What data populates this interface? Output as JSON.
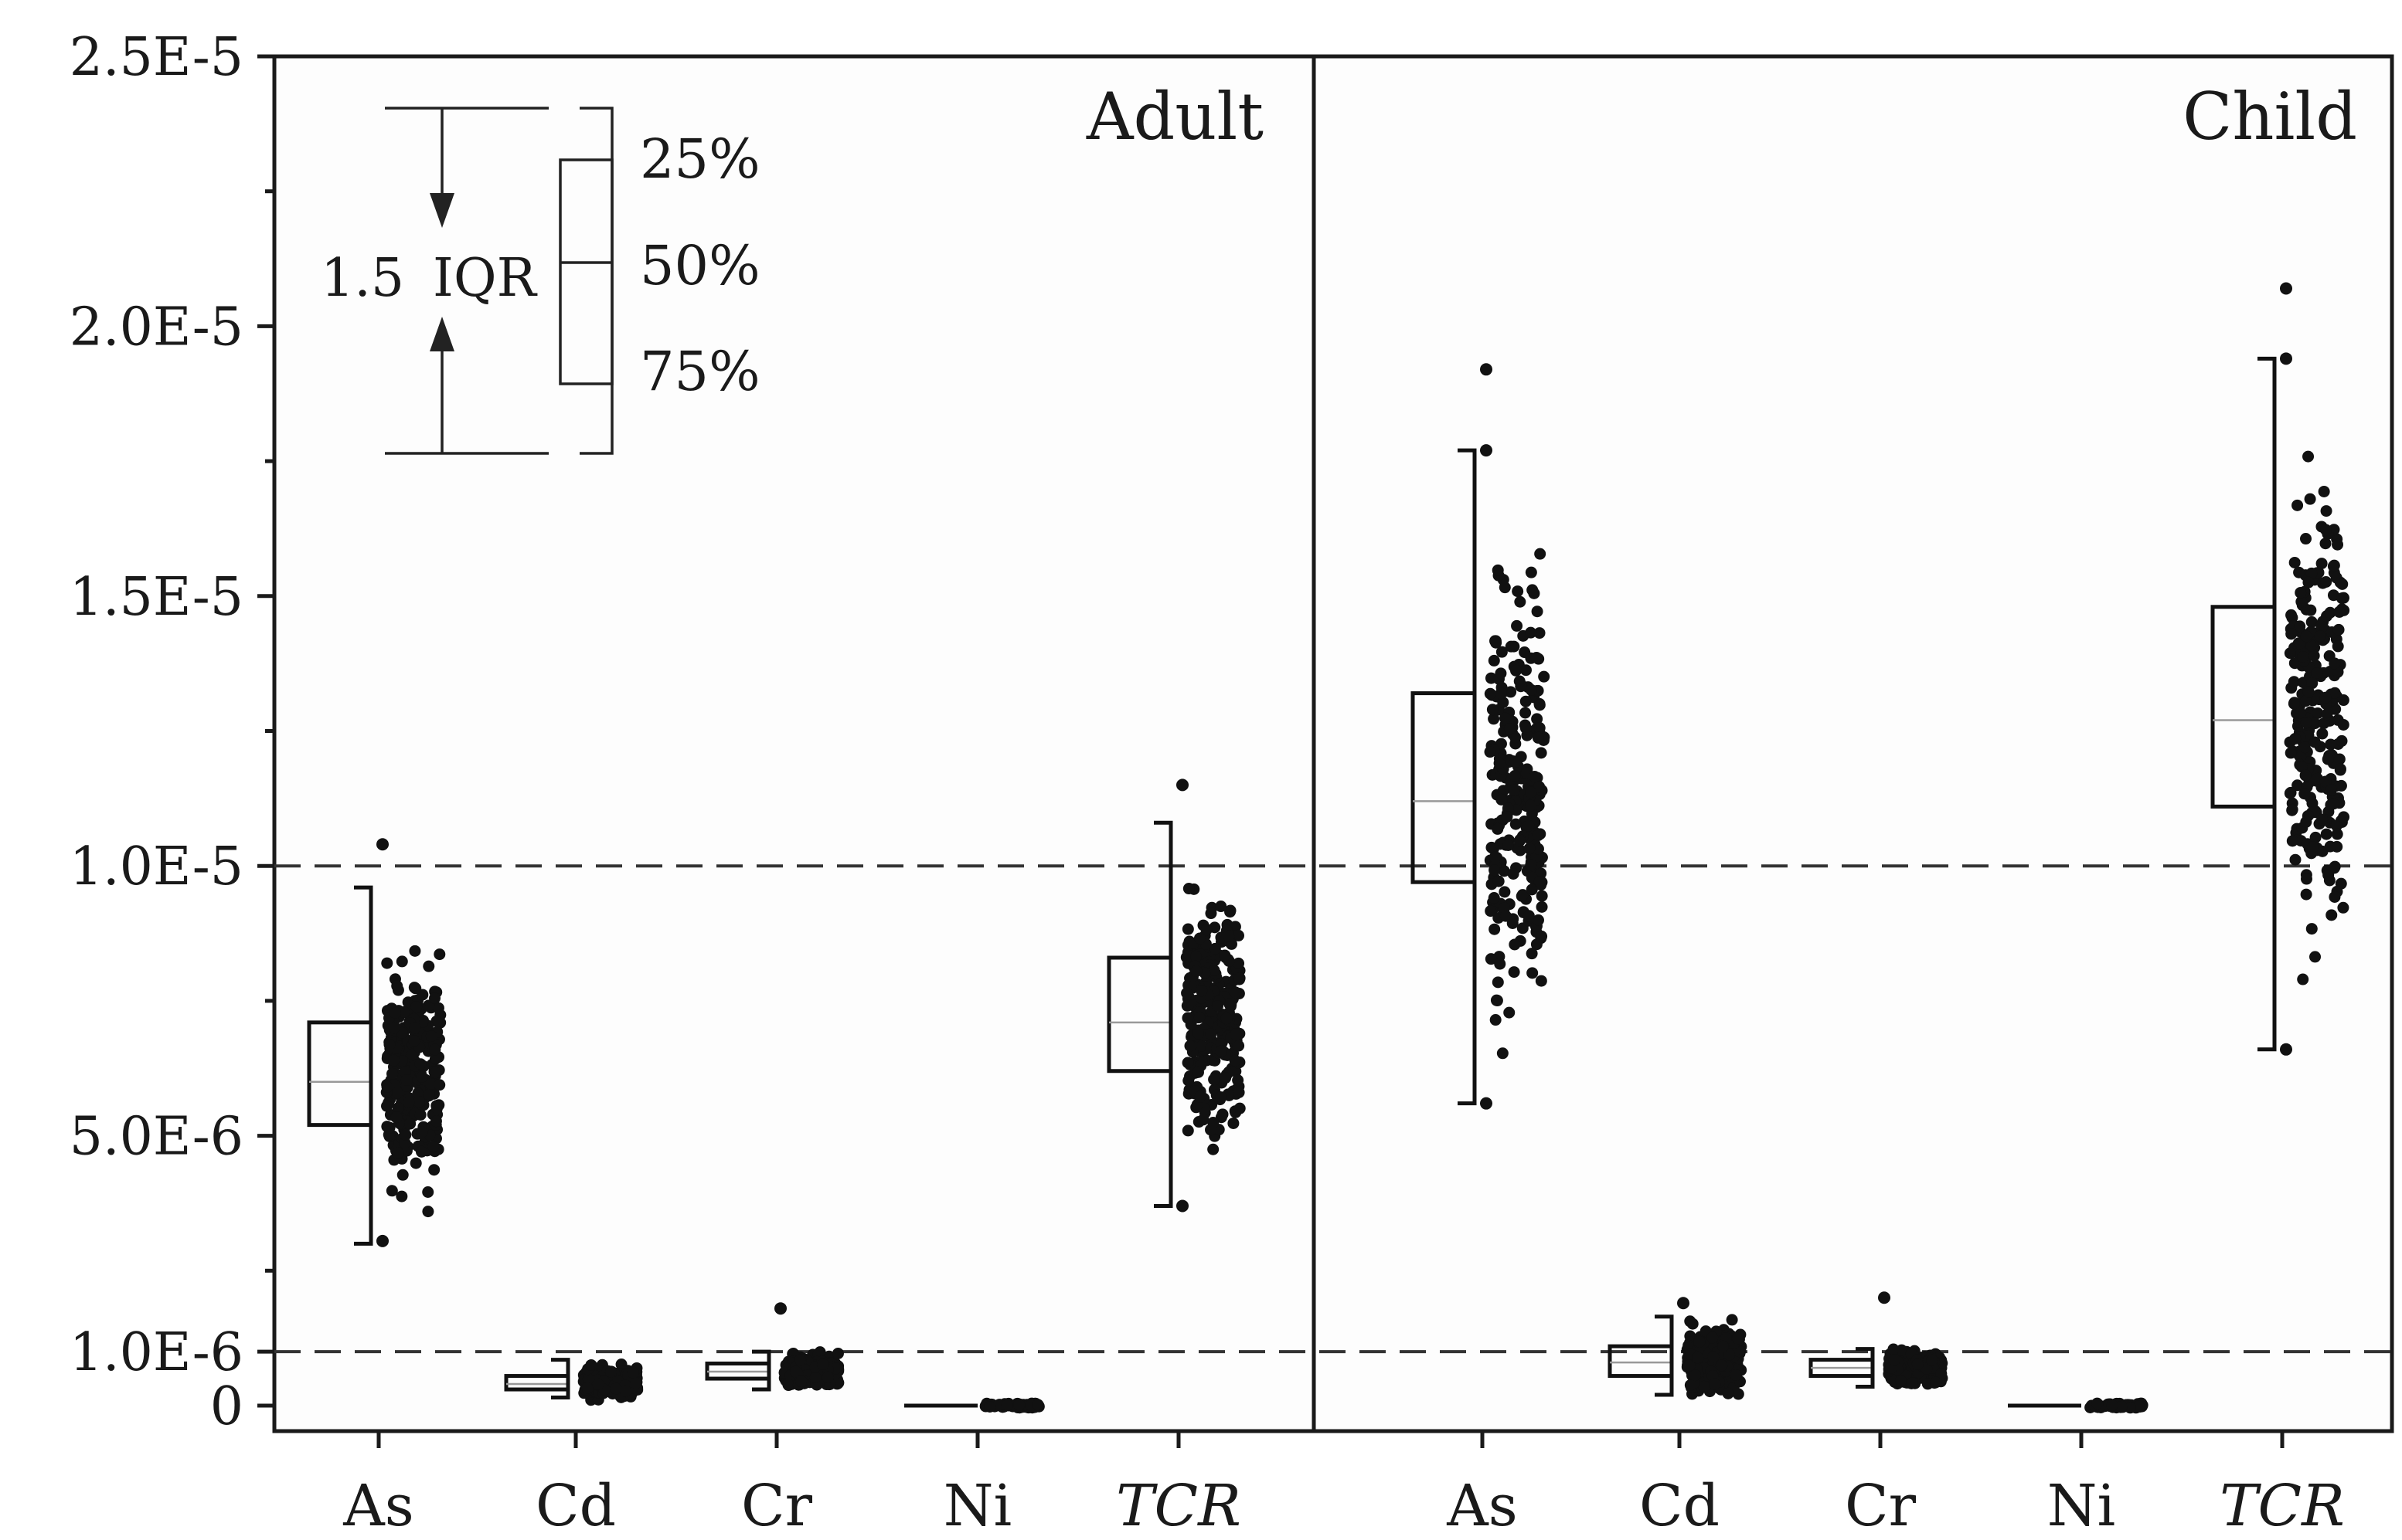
{
  "chart_data": {
    "type": "box",
    "title": "",
    "xlabel": "",
    "ylabel": "",
    "ylim": [
      0,
      2.5e-05
    ],
    "yticks": [
      {
        "value": 0,
        "label": "0"
      },
      {
        "value": 1e-06,
        "label": "1.0E-6"
      },
      {
        "value": 5e-06,
        "label": "5.0E-6"
      },
      {
        "value": 1e-05,
        "label": "1.0E-5"
      },
      {
        "value": 1.5e-05,
        "label": "1.5E-5"
      },
      {
        "value": 2e-05,
        "label": "2.0E-5"
      },
      {
        "value": 2.5e-05,
        "label": "2.5E-5"
      }
    ],
    "reference_lines": [
      1e-05,
      1e-06
    ],
    "categories": [
      "As",
      "Cd",
      "Cr",
      "Ni",
      "TCR"
    ],
    "panels": [
      {
        "name": "Adult",
        "boxes": [
          {
            "category": "As",
            "whisker_low": 3e-06,
            "q1": 5.2e-06,
            "median": 6e-06,
            "q3": 7.1e-06,
            "whisker_high": 9.6e-06,
            "points_min": 3.5e-06,
            "points_max": 8.5e-06,
            "outliers": [
              1.04e-05,
              3.05e-06
            ]
          },
          {
            "category": "Cd",
            "whisker_low": 1.5e-07,
            "q1": 3e-07,
            "median": 4e-07,
            "q3": 5.5e-07,
            "whisker_high": 8.5e-07,
            "points_min": 1e-07,
            "points_max": 1e-06,
            "outliers": []
          },
          {
            "category": "Cr",
            "whisker_low": 3e-07,
            "q1": 5e-07,
            "median": 6.3e-07,
            "q3": 7.8e-07,
            "whisker_high": 1e-06,
            "points_min": 3.5e-07,
            "points_max": 1e-06,
            "outliers": [
              1.8e-06
            ]
          },
          {
            "category": "Ni",
            "whisker_low": 0,
            "q1": 0,
            "median": 0,
            "q3": 0,
            "whisker_high": 0,
            "points_min": 0,
            "points_max": 0,
            "outliers": []
          },
          {
            "category": "TCR",
            "whisker_low": 3.7e-06,
            "q1": 6.2e-06,
            "median": 7.1e-06,
            "q3": 8.3e-06,
            "whisker_high": 1.08e-05,
            "points_min": 4.5e-06,
            "points_max": 1e-05,
            "outliers": [
              1.15e-05,
              3.7e-06
            ]
          }
        ]
      },
      {
        "name": "Child",
        "boxes": [
          {
            "category": "As",
            "whisker_low": 5.6e-06,
            "q1": 9.7e-06,
            "median": 1.12e-05,
            "q3": 1.32e-05,
            "whisker_high": 1.77e-05,
            "points_min": 6.5e-06,
            "points_max": 1.58e-05,
            "outliers": [
              1.92e-05,
              1.77e-05,
              5.6e-06
            ]
          },
          {
            "category": "Cd",
            "whisker_low": 2e-07,
            "q1": 5.5e-07,
            "median": 8e-07,
            "q3": 1.1e-06,
            "whisker_high": 1.65e-06,
            "points_min": 2e-07,
            "points_max": 1.6e-06,
            "outliers": [
              1.9e-06
            ]
          },
          {
            "category": "Cr",
            "whisker_low": 3.5e-07,
            "q1": 5.5e-07,
            "median": 7e-07,
            "q3": 8.5e-07,
            "whisker_high": 1.05e-06,
            "points_min": 4e-07,
            "points_max": 1.05e-06,
            "outliers": [
              2e-06
            ]
          },
          {
            "category": "Ni",
            "whisker_low": 0,
            "q1": 0,
            "median": 0,
            "q3": 0,
            "whisker_high": 0,
            "points_min": 0,
            "points_max": 0,
            "outliers": []
          },
          {
            "category": "TCR",
            "whisker_low": 6.6e-06,
            "q1": 1.11e-05,
            "median": 1.27e-05,
            "q3": 1.48e-05,
            "whisker_high": 1.94e-05,
            "points_min": 7.8e-06,
            "points_max": 1.78e-05,
            "outliers": [
              2.07e-05,
              1.94e-05,
              6.6e-06
            ]
          }
        ]
      }
    ],
    "legend": {
      "whisker_label": "1.5",
      "iqr_label": "IQR",
      "percentiles": [
        "25%",
        "50%",
        "75%"
      ]
    }
  }
}
